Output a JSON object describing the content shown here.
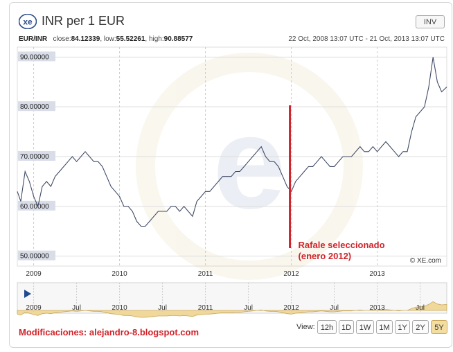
{
  "header": {
    "logo_text": "xe",
    "title": "INR per 1 EUR",
    "inv_label": "INV"
  },
  "stats": {
    "pair": "EUR/INR",
    "close_label": "close:",
    "close_value": "84.12339",
    "low_label": "low:",
    "low_value": "55.52261",
    "high_label": "high:",
    "high_value": "90.88577",
    "date_range": "22 Oct, 2008 13:07 UTC - 21 Oct, 2013 13:07 UTC"
  },
  "annotation": {
    "line1": "Rafale seleccionado",
    "line2": "(enero 2012)",
    "color": "#d2232a"
  },
  "watermark": "© XE.com",
  "footer": {
    "credit": "Modificaciones: alejandro-8.blogspot.com",
    "view_label": "View:",
    "view_buttons": [
      "12h",
      "1D",
      "1W",
      "1M",
      "1Y",
      "2Y",
      "5Y"
    ],
    "active_view": "5Y"
  },
  "navigator": {
    "tick_labels": [
      "2009",
      "Jul",
      "2010",
      "Jul",
      "2011",
      "Jul",
      "2012",
      "Jul",
      "2013",
      "Jul"
    ]
  },
  "chart_data": {
    "type": "line",
    "title": "INR per 1 EUR",
    "xlabel": "",
    "ylabel": "",
    "y_tick_labels": [
      "90.00000",
      "80.00000",
      "70.00000",
      "60.00000",
      "50.00000"
    ],
    "y_ticks": [
      90,
      80,
      70,
      60,
      50
    ],
    "x_tick_labels": [
      "2009",
      "2010",
      "2011",
      "2012",
      "2013"
    ],
    "x_ticks": [
      2009,
      2010,
      2011,
      2012,
      2013
    ],
    "xlim": [
      2008.81,
      2013.81
    ],
    "ylim": [
      48,
      92
    ],
    "grid": true,
    "series": [
      {
        "color": "#3f4a66",
        "x": [
          2008.81,
          2008.85,
          2008.9,
          2008.95,
          2009.0,
          2009.05,
          2009.1,
          2009.15,
          2009.2,
          2009.25,
          2009.3,
          2009.35,
          2009.4,
          2009.45,
          2009.5,
          2009.55,
          2009.6,
          2009.65,
          2009.7,
          2009.75,
          2009.8,
          2009.85,
          2009.9,
          2009.95,
          2010.0,
          2010.05,
          2010.1,
          2010.15,
          2010.2,
          2010.25,
          2010.3,
          2010.35,
          2010.4,
          2010.45,
          2010.5,
          2010.55,
          2010.6,
          2010.65,
          2010.7,
          2010.75,
          2010.8,
          2010.85,
          2010.9,
          2010.95,
          2011.0,
          2011.05,
          2011.1,
          2011.15,
          2011.2,
          2011.25,
          2011.3,
          2011.35,
          2011.4,
          2011.45,
          2011.5,
          2011.55,
          2011.6,
          2011.65,
          2011.7,
          2011.75,
          2011.8,
          2011.85,
          2011.9,
          2011.95,
          2012.0,
          2012.05,
          2012.1,
          2012.15,
          2012.2,
          2012.25,
          2012.3,
          2012.35,
          2012.4,
          2012.45,
          2012.5,
          2012.55,
          2012.6,
          2012.65,
          2012.7,
          2012.75,
          2012.8,
          2012.85,
          2012.9,
          2012.95,
          2013.0,
          2013.05,
          2013.1,
          2013.15,
          2013.2,
          2013.25,
          2013.3,
          2013.35,
          2013.4,
          2013.45,
          2013.5,
          2013.55,
          2013.6,
          2013.65,
          2013.7,
          2013.75,
          2013.81
        ],
        "y": [
          63,
          61,
          67,
          65,
          62,
          60,
          64,
          65,
          64,
          66,
          67,
          68,
          69,
          70,
          69,
          70,
          71,
          70,
          69,
          69,
          68,
          66,
          64,
          63,
          62,
          60,
          60,
          59,
          57,
          56,
          56,
          57,
          58,
          59,
          59,
          59,
          60,
          60,
          59,
          60,
          59,
          58,
          61,
          62,
          63,
          63,
          64,
          65,
          66,
          66,
          66,
          67,
          67,
          68,
          69,
          70,
          71,
          72,
          70,
          69,
          69,
          68,
          66,
          64,
          63,
          65,
          66,
          67,
          68,
          68,
          69,
          70,
          69,
          68,
          68,
          69,
          70,
          70,
          70,
          71,
          72,
          71,
          71,
          72,
          71,
          72,
          73,
          72,
          71,
          70,
          71,
          71,
          75,
          78,
          79,
          80,
          84,
          90,
          85,
          83,
          84
        ]
      }
    ]
  }
}
